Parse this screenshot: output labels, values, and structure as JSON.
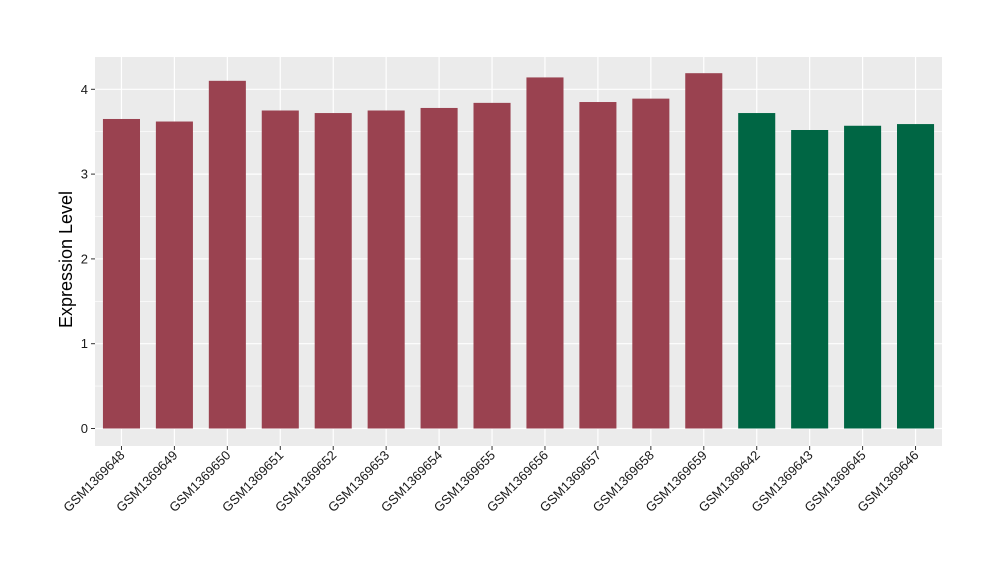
{
  "chart_data": {
    "type": "bar",
    "title": "",
    "xlabel": "",
    "ylabel": "Expression Level",
    "ylim": [
      0,
      4.35
    ],
    "yticks": [
      "0",
      "1",
      "2",
      "3",
      "4"
    ],
    "grid": true,
    "legend": "none",
    "categories": [
      "GSM1369648",
      "GSM1369649",
      "GSM1369650",
      "GSM1369651",
      "GSM1369652",
      "GSM1369653",
      "GSM1369654",
      "GSM1369655",
      "GSM1369656",
      "GSM1369657",
      "GSM1369658",
      "GSM1369659",
      "GSM1369642",
      "GSM1369643",
      "GSM1369645",
      "GSM1369646"
    ],
    "values": [
      3.65,
      3.62,
      4.1,
      3.75,
      3.72,
      3.75,
      3.78,
      3.84,
      4.14,
      3.85,
      3.89,
      4.19,
      3.72,
      3.52,
      3.57,
      3.59
    ],
    "groups": [
      "a",
      "a",
      "a",
      "a",
      "a",
      "a",
      "a",
      "a",
      "a",
      "a",
      "a",
      "a",
      "b",
      "b",
      "b",
      "b"
    ],
    "colors": {
      "a": "#9a4250",
      "b": "#006644",
      "panel": "#ebebeb",
      "grid": "#ffffff"
    }
  }
}
